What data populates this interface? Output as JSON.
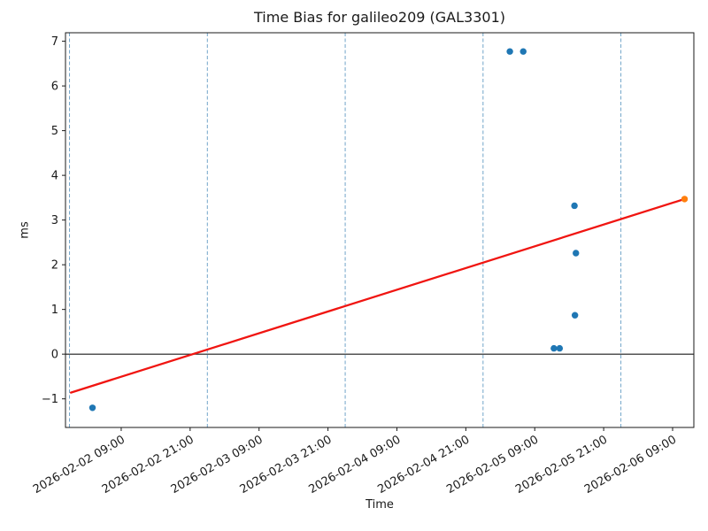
{
  "figure": {
    "kind": "matplotlib-style time-series plot",
    "background": "#ffffff"
  },
  "colors": {
    "measurement_point": "#1f77b4",
    "predicted_point": "#ff7f0e",
    "trend_line": "#f01511",
    "zero_line": "#1a1a1a",
    "day_gridline": "#72a5c9",
    "spine": "#1a1a1a",
    "text": "#1a1a1a"
  },
  "chart_data": {
    "type": "scatter",
    "title": "Time Bias for galileo209 (GAL3301)",
    "xlabel": "Time",
    "ylabel": "ms",
    "ylim": [
      -1.64,
      7.19
    ],
    "xlim": [
      "2026-02-01 23:18",
      "2026-02-06 12:42"
    ],
    "grid": "vertical dashed lines at day boundaries only",
    "legend": "none",
    "y_ticks": [
      {
        "value": -1,
        "label": "−1"
      },
      {
        "value": 0,
        "label": "0"
      },
      {
        "value": 1,
        "label": "1"
      },
      {
        "value": 2,
        "label": "2"
      },
      {
        "value": 3,
        "label": "3"
      },
      {
        "value": 4,
        "label": "4"
      },
      {
        "value": 5,
        "label": "5"
      },
      {
        "value": 6,
        "label": "6"
      },
      {
        "value": 7,
        "label": "7"
      }
    ],
    "x_ticks": [
      "2026-02-02 09:00",
      "2026-02-02 21:00",
      "2026-02-03 09:00",
      "2026-02-03 21:00",
      "2026-02-04 09:00",
      "2026-02-04 21:00",
      "2026-02-05 09:00",
      "2026-02-05 21:00",
      "2026-02-06 09:00"
    ],
    "day_gridlines": [
      "2026-02-02 00:00",
      "2026-02-03 00:00",
      "2026-02-04 00:00",
      "2026-02-05 00:00",
      "2026-02-06 00:00"
    ],
    "zero_line": 0,
    "series": [
      {
        "name": "bias measurements",
        "type": "scatter",
        "color": "#1f77b4",
        "points": [
          {
            "t": "2026-02-02 04:00",
            "v": -1.2
          },
          {
            "t": "2026-02-05 04:40",
            "v": 6.77
          },
          {
            "t": "2026-02-05 07:00",
            "v": 6.77
          },
          {
            "t": "2026-02-05 12:20",
            "v": 0.13
          },
          {
            "t": "2026-02-05 13:20",
            "v": 0.13
          },
          {
            "t": "2026-02-05 15:55",
            "v": 3.32
          },
          {
            "t": "2026-02-05 16:00",
            "v": 0.87
          },
          {
            "t": "2026-02-05 16:10",
            "v": 2.26
          }
        ]
      },
      {
        "name": "predicted bias",
        "type": "scatter",
        "color": "#ff7f0e",
        "points": [
          {
            "t": "2026-02-06 11:05",
            "v": 3.47
          }
        ]
      },
      {
        "name": "trend line",
        "type": "line",
        "color": "#f01511",
        "points": [
          {
            "t": "2026-02-02 00:15",
            "v": -0.86
          },
          {
            "t": "2026-02-06 11:05",
            "v": 3.47
          }
        ]
      }
    ]
  }
}
